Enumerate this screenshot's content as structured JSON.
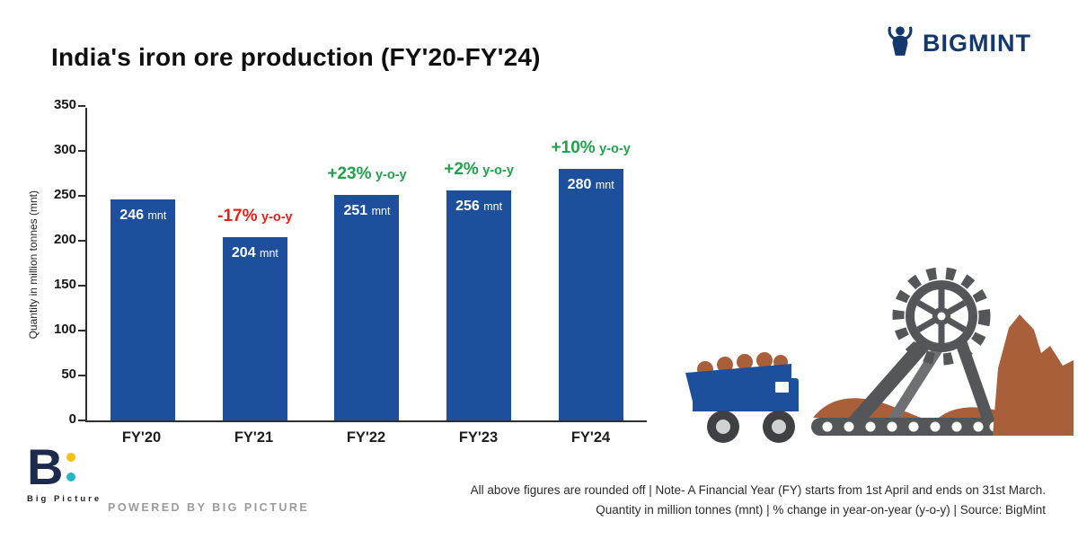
{
  "header": {
    "title": "India's iron ore production (FY'20-FY'24)",
    "brand_name": "BIGMINT"
  },
  "chart_data": {
    "type": "bar",
    "title": "India's iron ore production (FY'20-FY'24)",
    "categories": [
      "FY'20",
      "FY'21",
      "FY'22",
      "FY'23",
      "FY'24"
    ],
    "values": [
      246,
      204,
      251,
      256,
      280
    ],
    "value_unit": "mnt",
    "bar_labels": [
      {
        "num": "246",
        "unit": "mnt"
      },
      {
        "num": "204",
        "unit": "mnt"
      },
      {
        "num": "251",
        "unit": "mnt"
      },
      {
        "num": "256",
        "unit": "mnt"
      },
      {
        "num": "280",
        "unit": "mnt"
      }
    ],
    "yoy_labels": [
      null,
      {
        "pct": "-17%",
        "suffix": "y-o-y",
        "direction": "negative"
      },
      {
        "pct": "+23%",
        "suffix": "y-o-y",
        "direction": "positive"
      },
      {
        "pct": "+2%",
        "suffix": "y-o-y",
        "direction": "positive"
      },
      {
        "pct": "+10%",
        "suffix": "y-o-y",
        "direction": "positive"
      }
    ],
    "ylabel": "Quantity in million tonnes (mnt)",
    "xlabel": "",
    "ylim": [
      0,
      350
    ],
    "yticks": [
      0,
      50,
      100,
      150,
      200,
      250,
      300,
      350
    ],
    "grid": false,
    "legend": false,
    "bar_color": "#1e4f9c",
    "positive_color": "#1fa24a",
    "negative_color": "#e2231a"
  },
  "footer": {
    "powered_by": "POWERED BY BIG PICTURE",
    "logo_text": "Big Picture",
    "notes": [
      "All above figures are rounded off | Note- A Financial Year (FY) starts from 1st April and ends on 31st March.",
      "Quantity in million tonnes (mnt) | % change in year-on-year (y-o-y) | Source: BigMint"
    ]
  },
  "colors": {
    "bar_blue": "#1e4f9c",
    "positive_green": "#1fa24a",
    "negative_red": "#e2231a",
    "brand_navy": "#14386b",
    "excavator_gray": "#54565a",
    "ore_brown": "#a9603a",
    "logo_yellow": "#f4c20d",
    "logo_teal": "#27b7c4"
  }
}
